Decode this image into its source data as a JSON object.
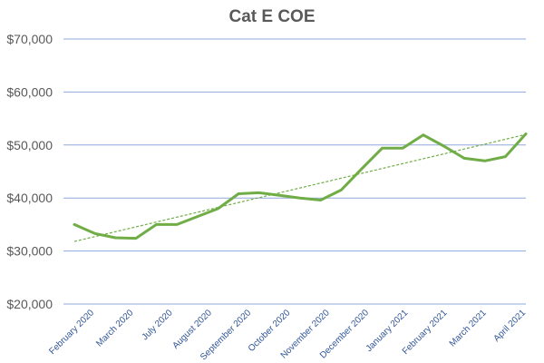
{
  "chart_data": {
    "type": "line",
    "title": "Cat E COE",
    "xlabel": "",
    "ylabel": "",
    "ylim": [
      20000,
      70000
    ],
    "ytick_values": [
      20000,
      30000,
      40000,
      50000,
      60000,
      70000
    ],
    "ytick_labels": [
      "$20,000",
      "$30,000",
      "$40,000",
      "$50,000",
      "$60,000",
      "$70,000"
    ],
    "xtick_labels": [
      "February 2020",
      "March 2020",
      "July 2020",
      "August 2020",
      "September 2020",
      "October 2020",
      "November 2020",
      "December 2020",
      "January 2021",
      "February 2021",
      "March 2021",
      "April 2021"
    ],
    "grid": true,
    "legend": "none",
    "colors": {
      "series": "#70ad47",
      "grid": "#8faadc",
      "text": "#595959",
      "xtick": "#2f5597"
    },
    "series": [
      {
        "values": [
          35000,
          33300,
          32500,
          32400,
          35000,
          35000,
          36500,
          38000,
          40800,
          41000,
          40500,
          40000,
          39600,
          41500,
          45500,
          49400,
          49400,
          51900,
          49800,
          47500,
          47000,
          47800,
          52100
        ]
      }
    ],
    "trendline": {
      "type": "linear",
      "start": 31800,
      "end": 52000
    }
  }
}
